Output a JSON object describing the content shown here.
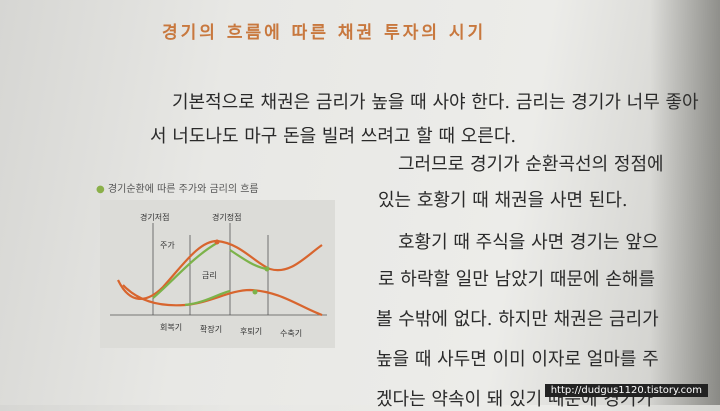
{
  "heading": "경기의 흐름에 따른 채권 투자의 시기",
  "paragraph1": [
    "기본적으로 채권은 금리가 높을 때 사야 한다. 금리는 경기가 너무 좋아",
    "서 너도나도 마구 돈을 빌려 쓰려고 할 때 오른다."
  ],
  "paragraph2": [
    "그러므로 경기가 순환곡선의 정점에",
    "있는 호황기 때 채권을 사면 된다."
  ],
  "paragraph3": [
    "호황기 때 주식을 사면 경기는 앞으",
    "로 하락할 일만 남았기 때문에 손해를",
    "볼 수밖에 없다. 하지만 채권은 금리가",
    "높을 때 사두면 이미 이자로 얼마를 주",
    "겠다는 약속이 돼 있기 때문에 경기가"
  ],
  "figure": {
    "caption": "경기순환에 따른 주가와 금리의 흐름",
    "top_labels": [
      "경기저점",
      "경기정점"
    ],
    "curve_labels": [
      "주가",
      "금리"
    ],
    "phases": [
      "회복기",
      "확장기",
      "후퇴기",
      "수축기"
    ]
  },
  "watermark": "http://dudgus1120.tistory.com"
}
